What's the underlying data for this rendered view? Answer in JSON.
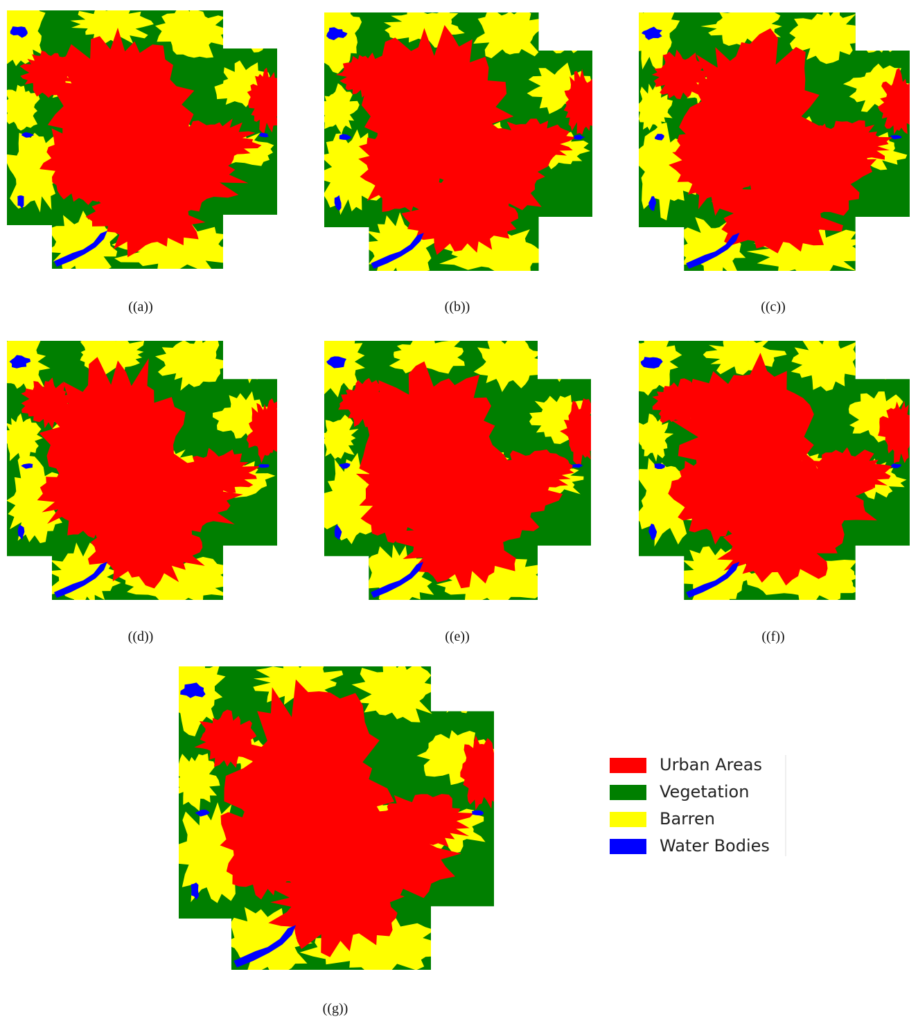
{
  "panels": [
    {
      "caption": "((a))"
    },
    {
      "caption": "((b))"
    },
    {
      "caption": "((c))"
    },
    {
      "caption": "((d))"
    },
    {
      "caption": "((e))"
    },
    {
      "caption": "((f))"
    },
    {
      "caption": "((g))"
    }
  ],
  "legend": {
    "items": [
      {
        "label": "Urban Areas",
        "color": "#ff0000"
      },
      {
        "label": "Vegetation",
        "color": "#007f00"
      },
      {
        "label": "Barren",
        "color": "#ffff00"
      },
      {
        "label": "Water Bodies",
        "color": "#0000ff"
      }
    ]
  }
}
